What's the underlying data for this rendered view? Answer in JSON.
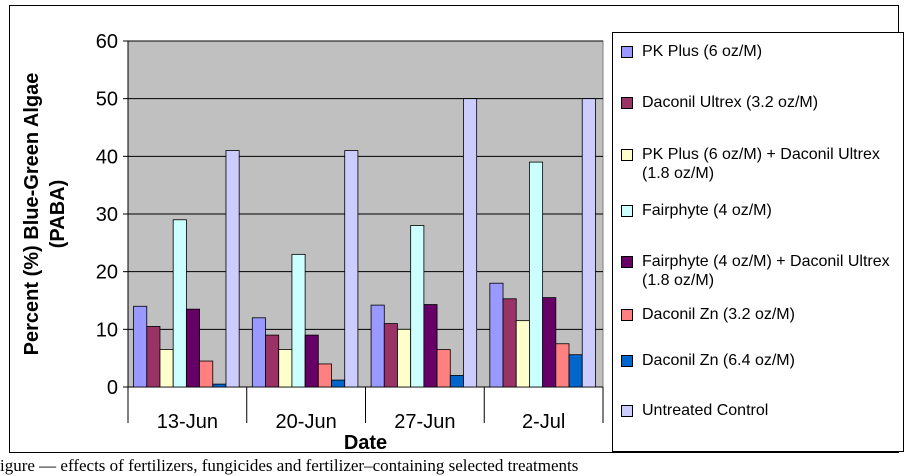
{
  "chart_data": {
    "type": "bar",
    "categories": [
      "13-Jun",
      "20-Jun",
      "27-Jun",
      "2-Jul"
    ],
    "xlabel": "Date",
    "ylabel": "Percent (%) Blue-Green Algae (PABA)",
    "ylim": [
      0,
      60
    ],
    "yticks": [
      0,
      10,
      20,
      30,
      40,
      50,
      60
    ],
    "grid": true,
    "legend_position": "right",
    "plot_background": "#c0c0c0",
    "series": [
      {
        "name": "PK Plus (6 oz/M)",
        "color": "#9999ff",
        "values": [
          14,
          12,
          14.2,
          18
        ]
      },
      {
        "name": "Daconil Ultrex (3.2 oz/M)",
        "color": "#993366",
        "values": [
          10.5,
          9,
          11,
          15.3
        ]
      },
      {
        "name": "PK Plus (6 oz/M) + Daconil Ultrex (1.8 oz/M)",
        "color": "#ffffcc",
        "values": [
          6.5,
          6.5,
          10,
          11.5
        ]
      },
      {
        "name": "Fairphyte (4 oz/M)",
        "color": "#ccffff",
        "values": [
          29,
          23,
          28,
          39
        ]
      },
      {
        "name": "Fairphyte (4 oz/M) + Daconil Ultrex (1.8 oz/M)",
        "color": "#660066",
        "values": [
          13.5,
          9,
          14.3,
          15.5
        ]
      },
      {
        "name": "Daconil Zn (3.2 oz/M)",
        "color": "#ff8080",
        "values": [
          4.5,
          4,
          6.5,
          7.5
        ]
      },
      {
        "name": "Daconil Zn (6.4 oz/M)",
        "color": "#0066cc",
        "values": [
          0.5,
          1.2,
          2,
          5.6
        ]
      },
      {
        "name": "Untreated Control",
        "color": "#ccccff",
        "values": [
          41,
          41,
          50,
          50
        ]
      }
    ]
  },
  "caption": "igure — effects of fertilizers, fungicides and fertilizer–containing selected treatments"
}
